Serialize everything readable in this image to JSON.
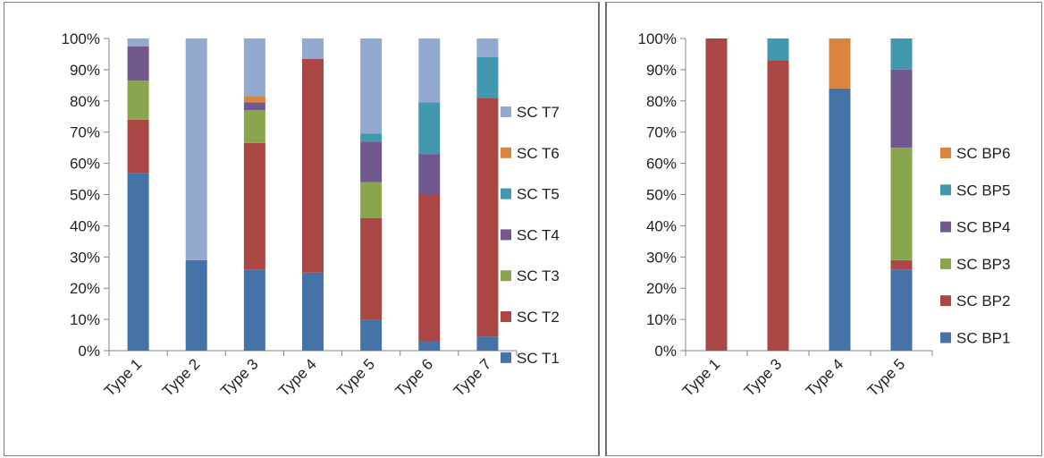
{
  "chart_data": [
    {
      "type": "bar",
      "stacked": true,
      "percent_stacked": true,
      "categories": [
        "Type 1",
        "Type 2",
        "Type 3",
        "Type 4",
        "Type 5",
        "Type 6",
        "Type 7"
      ],
      "series": [
        {
          "name": "SC T1",
          "color": "#4573A7",
          "values": [
            57,
            29,
            26,
            25,
            10,
            3,
            4.5
          ]
        },
        {
          "name": "SC T2",
          "color": "#AA4643",
          "values": [
            17,
            0,
            40.5,
            68.5,
            32.5,
            47,
            76.5
          ]
        },
        {
          "name": "SC T3",
          "color": "#89A54E",
          "values": [
            12.5,
            0,
            10.5,
            0,
            11.5,
            0,
            0
          ]
        },
        {
          "name": "SC T4",
          "color": "#71588F",
          "values": [
            11,
            0,
            2.5,
            0,
            13,
            13,
            0
          ]
        },
        {
          "name": "SC T5",
          "color": "#4198AF",
          "values": [
            0,
            0,
            0,
            0,
            2.5,
            16.5,
            13
          ]
        },
        {
          "name": "SC T6",
          "color": "#DB843D",
          "values": [
            0,
            0,
            2,
            0,
            0,
            0,
            0
          ]
        },
        {
          "name": "SC T7",
          "color": "#93A9CF",
          "values": [
            2.5,
            71,
            18.5,
            6.5,
            30.5,
            20.5,
            6
          ]
        }
      ],
      "y_ticks": [
        "0%",
        "10%",
        "20%",
        "30%",
        "40%",
        "50%",
        "60%",
        "70%",
        "80%",
        "90%",
        "100%"
      ],
      "ylim": [
        0,
        100
      ],
      "legend_position": "right"
    },
    {
      "type": "bar",
      "stacked": true,
      "percent_stacked": true,
      "categories": [
        "Type 1",
        "Type 3",
        "Type 4",
        "Type 5"
      ],
      "series": [
        {
          "name": "SC BP1",
          "color": "#4573A7",
          "values": [
            0,
            0,
            84,
            26
          ]
        },
        {
          "name": "SC BP2",
          "color": "#AA4643",
          "values": [
            100,
            93,
            0,
            3
          ]
        },
        {
          "name": "SC BP3",
          "color": "#89A54E",
          "values": [
            0,
            0,
            0,
            36
          ]
        },
        {
          "name": "SC BP4",
          "color": "#71588F",
          "values": [
            0,
            0,
            0,
            25
          ]
        },
        {
          "name": "SC BP5",
          "color": "#4198AF",
          "values": [
            0,
            7,
            0,
            10
          ]
        },
        {
          "name": "SC BP6",
          "color": "#DB843D",
          "values": [
            0,
            0,
            16,
            0
          ]
        }
      ],
      "y_ticks": [
        "0%",
        "10%",
        "20%",
        "30%",
        "40%",
        "50%",
        "60%",
        "70%",
        "80%",
        "90%",
        "100%"
      ],
      "ylim": [
        0,
        100
      ],
      "legend_position": "right"
    }
  ]
}
